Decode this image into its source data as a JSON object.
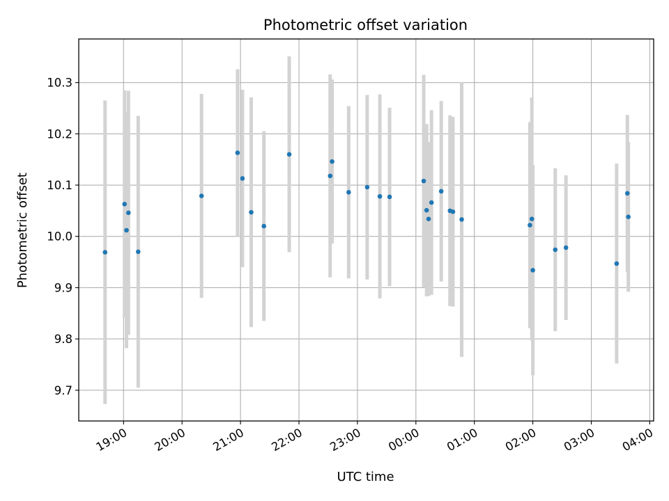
{
  "chart_data": {
    "type": "scatter",
    "title": "Photometric offset variation",
    "xlabel": "UTC time",
    "ylabel": "Photometric offset",
    "grid": true,
    "xlim": [
      "18:14",
      "04:04"
    ],
    "ylim": [
      9.64,
      10.385
    ],
    "x_ticks": [
      "19:00",
      "20:00",
      "21:00",
      "22:00",
      "23:00",
      "00:00",
      "01:00",
      "02:00",
      "03:00",
      "04:00"
    ],
    "y_ticks": [
      "9.7",
      "9.8",
      "9.9",
      "10.0",
      "10.1",
      "10.2",
      "10.3"
    ],
    "marker_color": "#1f77b4",
    "errorbar_color": "#d3d3d3",
    "series": [
      {
        "points": [
          {
            "x": "18:41",
            "y": 9.969,
            "err": 0.296
          },
          {
            "x": "19:01",
            "y": 10.063,
            "err": 0.222
          },
          {
            "x": "19:03",
            "y": 10.012,
            "err": 0.23
          },
          {
            "x": "19:05",
            "y": 10.046,
            "err": 0.238
          },
          {
            "x": "19:15",
            "y": 9.97,
            "err": 0.265
          },
          {
            "x": "20:20",
            "y": 10.079,
            "err": 0.199
          },
          {
            "x": "20:57",
            "y": 10.163,
            "err": 0.163
          },
          {
            "x": "21:02",
            "y": 10.113,
            "err": 0.173
          },
          {
            "x": "21:11",
            "y": 10.047,
            "err": 0.224
          },
          {
            "x": "21:24",
            "y": 10.02,
            "err": 0.185
          },
          {
            "x": "21:50",
            "y": 10.16,
            "err": 0.191
          },
          {
            "x": "22:32",
            "y": 10.118,
            "err": 0.198
          },
          {
            "x": "22:34",
            "y": 10.146,
            "err": 0.16
          },
          {
            "x": "22:51",
            "y": 10.086,
            "err": 0.168
          },
          {
            "x": "23:10",
            "y": 10.096,
            "err": 0.18
          },
          {
            "x": "23:23",
            "y": 10.078,
            "err": 0.199
          },
          {
            "x": "23:33",
            "y": 10.077,
            "err": 0.174
          },
          {
            "x": "00:08",
            "y": 10.108,
            "err": 0.207
          },
          {
            "x": "00:11",
            "y": 10.051,
            "err": 0.168
          },
          {
            "x": "00:13",
            "y": 10.034,
            "err": 0.15
          },
          {
            "x": "00:16",
            "y": 10.066,
            "err": 0.18
          },
          {
            "x": "00:26",
            "y": 10.088,
            "err": 0.176
          },
          {
            "x": "00:35",
            "y": 10.05,
            "err": 0.186
          },
          {
            "x": "00:38",
            "y": 10.048,
            "err": 0.185
          },
          {
            "x": "00:47",
            "y": 10.033,
            "err": 0.268
          },
          {
            "x": "01:57",
            "y": 10.022,
            "err": 0.201
          },
          {
            "x": "01:59",
            "y": 10.034,
            "err": 0.237
          },
          {
            "x": "02:00",
            "y": 9.934,
            "err": 0.205
          },
          {
            "x": "02:23",
            "y": 9.974,
            "err": 0.159
          },
          {
            "x": "02:34",
            "y": 9.978,
            "err": 0.141
          },
          {
            "x": "03:26",
            "y": 9.947,
            "err": 0.195
          },
          {
            "x": "03:37",
            "y": 10.084,
            "err": 0.153
          },
          {
            "x": "03:38",
            "y": 10.038,
            "err": 0.146
          }
        ]
      }
    ]
  }
}
